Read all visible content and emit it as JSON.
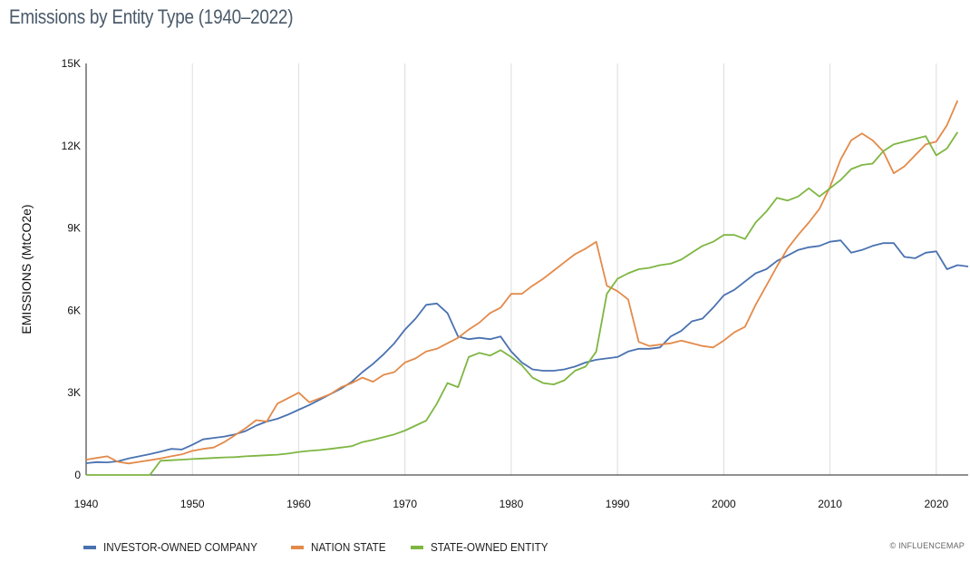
{
  "header": {
    "title": "Emissions by Entity Type (1940–2022)"
  },
  "credit": "© INFLUENCEMAP",
  "chart_data": {
    "type": "line",
    "title": "Emissions by Entity Type (1940–2022)",
    "xlabel": "",
    "ylabel": "EMISSIONS (MtCO2e)",
    "xlim": [
      1940,
      2023
    ],
    "ylim": [
      0,
      15000
    ],
    "x_ticks": [
      1940,
      1950,
      1960,
      1970,
      1980,
      1990,
      2000,
      2010,
      2020
    ],
    "x_tick_labels": [
      "1940",
      "1950",
      "1960",
      "1970",
      "1980",
      "1990",
      "2000",
      "2010",
      "2020"
    ],
    "y_ticks": [
      0,
      3000,
      6000,
      9000,
      12000,
      15000
    ],
    "y_tick_labels": [
      "0",
      "3K",
      "6K",
      "9K",
      "12K",
      "15K"
    ],
    "grid": "vertical",
    "legend_position": "bottom-left",
    "series": [
      {
        "name": "INVESTOR-OWNED COMPANY",
        "color": "#4a72b0",
        "points": [
          [
            1940,
            430
          ],
          [
            1941,
            470
          ],
          [
            1942,
            460
          ],
          [
            1943,
            500
          ],
          [
            1944,
            600
          ],
          [
            1945,
            680
          ],
          [
            1946,
            760
          ],
          [
            1947,
            850
          ],
          [
            1948,
            950
          ],
          [
            1949,
            930
          ],
          [
            1950,
            1100
          ],
          [
            1951,
            1300
          ],
          [
            1952,
            1350
          ],
          [
            1953,
            1400
          ],
          [
            1954,
            1480
          ],
          [
            1955,
            1600
          ],
          [
            1956,
            1800
          ],
          [
            1957,
            1950
          ],
          [
            1958,
            2050
          ],
          [
            1959,
            2200
          ],
          [
            1960,
            2380
          ],
          [
            1961,
            2550
          ],
          [
            1962,
            2750
          ],
          [
            1963,
            2950
          ],
          [
            1964,
            3150
          ],
          [
            1965,
            3400
          ],
          [
            1966,
            3750
          ],
          [
            1967,
            4050
          ],
          [
            1968,
            4400
          ],
          [
            1969,
            4800
          ],
          [
            1970,
            5300
          ],
          [
            1971,
            5700
          ],
          [
            1972,
            6200
          ],
          [
            1973,
            6250
          ],
          [
            1974,
            5900
          ],
          [
            1975,
            5050
          ],
          [
            1976,
            4950
          ],
          [
            1977,
            5000
          ],
          [
            1978,
            4950
          ],
          [
            1979,
            5050
          ],
          [
            1980,
            4500
          ],
          [
            1981,
            4100
          ],
          [
            1982,
            3850
          ],
          [
            1983,
            3800
          ],
          [
            1984,
            3800
          ],
          [
            1985,
            3850
          ],
          [
            1986,
            3950
          ],
          [
            1987,
            4100
          ],
          [
            1988,
            4200
          ],
          [
            1989,
            4250
          ],
          [
            1990,
            4300
          ],
          [
            1991,
            4500
          ],
          [
            1992,
            4600
          ],
          [
            1993,
            4600
          ],
          [
            1994,
            4650
          ],
          [
            1995,
            5050
          ],
          [
            1996,
            5250
          ],
          [
            1997,
            5600
          ],
          [
            1998,
            5700
          ],
          [
            1999,
            6100
          ],
          [
            2000,
            6550
          ],
          [
            2001,
            6750
          ],
          [
            2002,
            7050
          ],
          [
            2003,
            7350
          ],
          [
            2004,
            7500
          ],
          [
            2005,
            7800
          ],
          [
            2006,
            8000
          ],
          [
            2007,
            8200
          ],
          [
            2008,
            8300
          ],
          [
            2009,
            8350
          ],
          [
            2010,
            8500
          ],
          [
            2011,
            8550
          ],
          [
            2012,
            8100
          ],
          [
            2013,
            8200
          ],
          [
            2014,
            8350
          ],
          [
            2015,
            8450
          ],
          [
            2016,
            8450
          ],
          [
            2017,
            7950
          ],
          [
            2018,
            7900
          ],
          [
            2019,
            8100
          ],
          [
            2020,
            8150
          ],
          [
            2021,
            7500
          ],
          [
            2022,
            7650
          ],
          [
            2023,
            7600
          ]
        ]
      },
      {
        "name": "NATION STATE",
        "color": "#e38a4a",
        "points": [
          [
            1940,
            560
          ],
          [
            1941,
            620
          ],
          [
            1942,
            680
          ],
          [
            1943,
            480
          ],
          [
            1944,
            420
          ],
          [
            1945,
            480
          ],
          [
            1946,
            540
          ],
          [
            1947,
            600
          ],
          [
            1948,
            680
          ],
          [
            1949,
            750
          ],
          [
            1950,
            880
          ],
          [
            1951,
            950
          ],
          [
            1952,
            1000
          ],
          [
            1953,
            1200
          ],
          [
            1954,
            1450
          ],
          [
            1955,
            1700
          ],
          [
            1956,
            2000
          ],
          [
            1957,
            1950
          ],
          [
            1958,
            2600
          ],
          [
            1959,
            2800
          ],
          [
            1960,
            3000
          ],
          [
            1961,
            2650
          ],
          [
            1962,
            2800
          ],
          [
            1963,
            2950
          ],
          [
            1964,
            3200
          ],
          [
            1965,
            3350
          ],
          [
            1966,
            3550
          ],
          [
            1967,
            3400
          ],
          [
            1968,
            3650
          ],
          [
            1969,
            3750
          ],
          [
            1970,
            4100
          ],
          [
            1971,
            4250
          ],
          [
            1972,
            4500
          ],
          [
            1973,
            4600
          ],
          [
            1974,
            4800
          ],
          [
            1975,
            5000
          ],
          [
            1976,
            5300
          ],
          [
            1977,
            5550
          ],
          [
            1978,
            5900
          ],
          [
            1979,
            6100
          ],
          [
            1980,
            6600
          ],
          [
            1981,
            6600
          ],
          [
            1982,
            6900
          ],
          [
            1983,
            7150
          ],
          [
            1984,
            7450
          ],
          [
            1985,
            7750
          ],
          [
            1986,
            8050
          ],
          [
            1987,
            8250
          ],
          [
            1988,
            8500
          ],
          [
            1989,
            6900
          ],
          [
            1990,
            6700
          ],
          [
            1991,
            6400
          ],
          [
            1992,
            4850
          ],
          [
            1993,
            4700
          ],
          [
            1994,
            4750
          ],
          [
            1995,
            4800
          ],
          [
            1996,
            4900
          ],
          [
            1997,
            4800
          ],
          [
            1998,
            4700
          ],
          [
            1999,
            4650
          ],
          [
            2000,
            4900
          ],
          [
            2001,
            5200
          ],
          [
            2002,
            5400
          ],
          [
            2003,
            6200
          ],
          [
            2004,
            6900
          ],
          [
            2005,
            7600
          ],
          [
            2006,
            8250
          ],
          [
            2007,
            8750
          ],
          [
            2008,
            9200
          ],
          [
            2009,
            9700
          ],
          [
            2010,
            10500
          ],
          [
            2011,
            11500
          ],
          [
            2012,
            12200
          ],
          [
            2013,
            12450
          ],
          [
            2014,
            12200
          ],
          [
            2015,
            11800
          ],
          [
            2016,
            11000
          ],
          [
            2017,
            11250
          ],
          [
            2018,
            11650
          ],
          [
            2019,
            12050
          ],
          [
            2020,
            12150
          ],
          [
            2021,
            12750
          ],
          [
            2022,
            13650
          ]
        ]
      },
      {
        "name": "STATE-OWNED ENTITY",
        "color": "#7eb642",
        "points": [
          [
            1940,
            0
          ],
          [
            1941,
            0
          ],
          [
            1942,
            0
          ],
          [
            1943,
            0
          ],
          [
            1944,
            0
          ],
          [
            1945,
            0
          ],
          [
            1946,
            0
          ],
          [
            1947,
            520
          ],
          [
            1948,
            540
          ],
          [
            1949,
            560
          ],
          [
            1950,
            580
          ],
          [
            1951,
            600
          ],
          [
            1952,
            620
          ],
          [
            1953,
            640
          ],
          [
            1954,
            650
          ],
          [
            1955,
            680
          ],
          [
            1956,
            700
          ],
          [
            1957,
            720
          ],
          [
            1958,
            740
          ],
          [
            1959,
            780
          ],
          [
            1960,
            840
          ],
          [
            1961,
            880
          ],
          [
            1962,
            910
          ],
          [
            1963,
            950
          ],
          [
            1964,
            1000
          ],
          [
            1965,
            1050
          ],
          [
            1966,
            1200
          ],
          [
            1967,
            1280
          ],
          [
            1968,
            1380
          ],
          [
            1969,
            1480
          ],
          [
            1970,
            1620
          ],
          [
            1971,
            1800
          ],
          [
            1972,
            1980
          ],
          [
            1973,
            2600
          ],
          [
            1974,
            3350
          ],
          [
            1975,
            3200
          ],
          [
            1976,
            4300
          ],
          [
            1977,
            4450
          ],
          [
            1978,
            4350
          ],
          [
            1979,
            4550
          ],
          [
            1980,
            4300
          ],
          [
            1981,
            4000
          ],
          [
            1982,
            3550
          ],
          [
            1983,
            3350
          ],
          [
            1984,
            3300
          ],
          [
            1985,
            3450
          ],
          [
            1986,
            3800
          ],
          [
            1987,
            3950
          ],
          [
            1988,
            4500
          ],
          [
            1989,
            6600
          ],
          [
            1990,
            7150
          ],
          [
            1991,
            7350
          ],
          [
            1992,
            7500
          ],
          [
            1993,
            7550
          ],
          [
            1994,
            7650
          ],
          [
            1995,
            7700
          ],
          [
            1996,
            7850
          ],
          [
            1997,
            8100
          ],
          [
            1998,
            8350
          ],
          [
            1999,
            8500
          ],
          [
            2000,
            8750
          ],
          [
            2001,
            8750
          ],
          [
            2002,
            8600
          ],
          [
            2003,
            9200
          ],
          [
            2004,
            9600
          ],
          [
            2005,
            10100
          ],
          [
            2006,
            10000
          ],
          [
            2007,
            10150
          ],
          [
            2008,
            10450
          ],
          [
            2009,
            10150
          ],
          [
            2010,
            10450
          ],
          [
            2011,
            10750
          ],
          [
            2012,
            11150
          ],
          [
            2013,
            11300
          ],
          [
            2014,
            11350
          ],
          [
            2015,
            11800
          ],
          [
            2016,
            12050
          ],
          [
            2017,
            12150
          ],
          [
            2018,
            12250
          ],
          [
            2019,
            12350
          ],
          [
            2020,
            11650
          ],
          [
            2021,
            11900
          ],
          [
            2022,
            12500
          ]
        ]
      }
    ]
  }
}
